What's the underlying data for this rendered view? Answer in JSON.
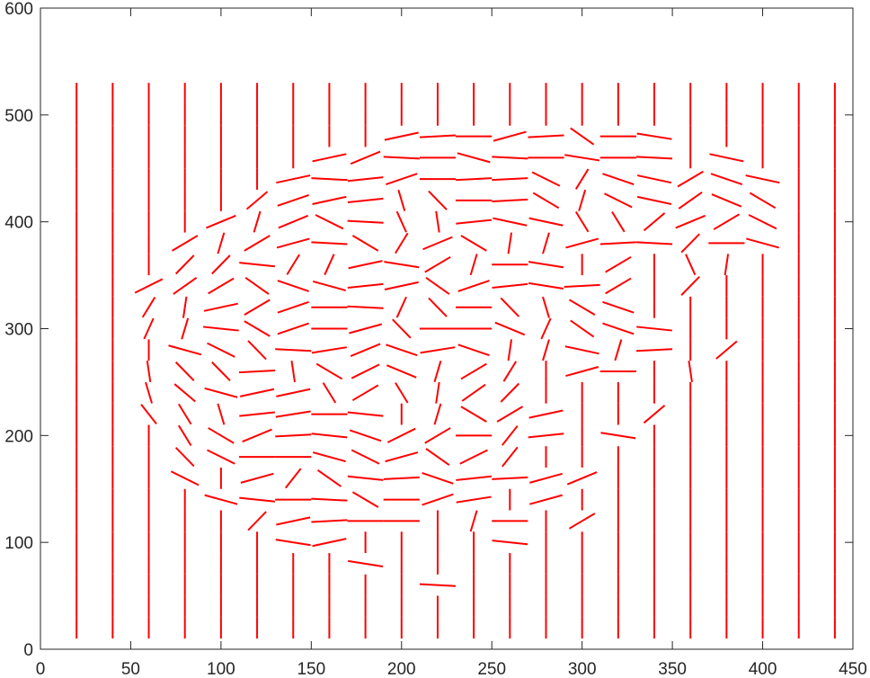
{
  "chart_data": {
    "type": "quiver",
    "title": "",
    "xlabel": "",
    "ylabel": "",
    "xlim": [
      0,
      450
    ],
    "ylim": [
      0,
      600
    ],
    "xticks": [
      0,
      50,
      100,
      150,
      200,
      250,
      300,
      350,
      400,
      450
    ],
    "yticks": [
      0,
      100,
      200,
      300,
      400,
      500,
      600
    ],
    "grid": false,
    "legend": "none",
    "segment_color": "#ff0000",
    "segment_length": 20,
    "grid_x": [
      20,
      40,
      60,
      80,
      100,
      120,
      140,
      160,
      180,
      200,
      220,
      240,
      260,
      280,
      300,
      320,
      340,
      360,
      380,
      400,
      420,
      440
    ],
    "grid_y": [
      20,
      40,
      60,
      80,
      100,
      120,
      140,
      160,
      180,
      200,
      220,
      240,
      260,
      280,
      300,
      320,
      340,
      360,
      380,
      400,
      420,
      440,
      460,
      480,
      500,
      520
    ],
    "vertical_default_angle_deg": 90,
    "oriented_segments": [
      {
        "x": 140,
        "y": 100,
        "angle": -15
      },
      {
        "x": 160,
        "y": 100,
        "angle": 20
      },
      {
        "x": 180,
        "y": 80,
        "angle": -15
      },
      {
        "x": 220,
        "y": 60,
        "angle": -5
      },
      {
        "x": 260,
        "y": 100,
        "angle": -10
      },
      {
        "x": 120,
        "y": 120,
        "angle": 60
      },
      {
        "x": 140,
        "y": 120,
        "angle": 20
      },
      {
        "x": 160,
        "y": 120,
        "angle": 5
      },
      {
        "x": 180,
        "y": 120,
        "angle": 0
      },
      {
        "x": 200,
        "y": 120,
        "angle": 0
      },
      {
        "x": 220,
        "y": 120,
        "angle": 90
      },
      {
        "x": 240,
        "y": 120,
        "angle": 80
      },
      {
        "x": 260,
        "y": 120,
        "angle": 0
      },
      {
        "x": 280,
        "y": 120,
        "angle": 90
      },
      {
        "x": 300,
        "y": 120,
        "angle": 45
      },
      {
        "x": 100,
        "y": 140,
        "angle": -25
      },
      {
        "x": 120,
        "y": 140,
        "angle": -10
      },
      {
        "x": 140,
        "y": 140,
        "angle": 0
      },
      {
        "x": 160,
        "y": 140,
        "angle": -5
      },
      {
        "x": 180,
        "y": 140,
        "angle": -45
      },
      {
        "x": 200,
        "y": 140,
        "angle": 0
      },
      {
        "x": 220,
        "y": 140,
        "angle": 30
      },
      {
        "x": 240,
        "y": 140,
        "angle": 15
      },
      {
        "x": 280,
        "y": 140,
        "angle": 25
      },
      {
        "x": 80,
        "y": 160,
        "angle": -40
      },
      {
        "x": 120,
        "y": 160,
        "angle": 25
      },
      {
        "x": 140,
        "y": 160,
        "angle": 65
      },
      {
        "x": 160,
        "y": 160,
        "angle": -50
      },
      {
        "x": 180,
        "y": 160,
        "angle": -10
      },
      {
        "x": 200,
        "y": 160,
        "angle": 5
      },
      {
        "x": 220,
        "y": 160,
        "angle": -30
      },
      {
        "x": 240,
        "y": 160,
        "angle": 10
      },
      {
        "x": 260,
        "y": 160,
        "angle": 5
      },
      {
        "x": 280,
        "y": 160,
        "angle": 25
      },
      {
        "x": 300,
        "y": 160,
        "angle": 35
      },
      {
        "x": 80,
        "y": 180,
        "angle": -60
      },
      {
        "x": 100,
        "y": 180,
        "angle": -40
      },
      {
        "x": 120,
        "y": 180,
        "angle": 0
      },
      {
        "x": 140,
        "y": 180,
        "angle": 0
      },
      {
        "x": 160,
        "y": 180,
        "angle": -25
      },
      {
        "x": 180,
        "y": 180,
        "angle": -40
      },
      {
        "x": 200,
        "y": 180,
        "angle": 25
      },
      {
        "x": 220,
        "y": 180,
        "angle": -50
      },
      {
        "x": 240,
        "y": 180,
        "angle": 40
      },
      {
        "x": 260,
        "y": 180,
        "angle": 65
      },
      {
        "x": 80,
        "y": 200,
        "angle": -70
      },
      {
        "x": 100,
        "y": 200,
        "angle": -45
      },
      {
        "x": 120,
        "y": 200,
        "angle": 35
      },
      {
        "x": 140,
        "y": 200,
        "angle": 5
      },
      {
        "x": 160,
        "y": 200,
        "angle": -10
      },
      {
        "x": 180,
        "y": 200,
        "angle": -30
      },
      {
        "x": 200,
        "y": 200,
        "angle": 40
      },
      {
        "x": 220,
        "y": 200,
        "angle": 45
      },
      {
        "x": 240,
        "y": 200,
        "angle": 0
      },
      {
        "x": 260,
        "y": 200,
        "angle": 65
      },
      {
        "x": 280,
        "y": 200,
        "angle": 10
      },
      {
        "x": 320,
        "y": 200,
        "angle": -15
      },
      {
        "x": 60,
        "y": 220,
        "angle": -65
      },
      {
        "x": 80,
        "y": 220,
        "angle": -70
      },
      {
        "x": 100,
        "y": 220,
        "angle": -80
      },
      {
        "x": 120,
        "y": 220,
        "angle": 10
      },
      {
        "x": 140,
        "y": 220,
        "angle": 15
      },
      {
        "x": 160,
        "y": 220,
        "angle": 0
      },
      {
        "x": 180,
        "y": 220,
        "angle": -10
      },
      {
        "x": 200,
        "y": 220,
        "angle": -90
      },
      {
        "x": 220,
        "y": 220,
        "angle": 80
      },
      {
        "x": 240,
        "y": 220,
        "angle": -45
      },
      {
        "x": 260,
        "y": 220,
        "angle": 45
      },
      {
        "x": 280,
        "y": 220,
        "angle": 20
      },
      {
        "x": 340,
        "y": 220,
        "angle": 55
      },
      {
        "x": 60,
        "y": 240,
        "angle": -80
      },
      {
        "x": 80,
        "y": 240,
        "angle": -55
      },
      {
        "x": 100,
        "y": 240,
        "angle": -25
      },
      {
        "x": 120,
        "y": 240,
        "angle": 20
      },
      {
        "x": 140,
        "y": 240,
        "angle": 20
      },
      {
        "x": 160,
        "y": 240,
        "angle": -70
      },
      {
        "x": 180,
        "y": 240,
        "angle": 45
      },
      {
        "x": 200,
        "y": 240,
        "angle": -70
      },
      {
        "x": 220,
        "y": 240,
        "angle": 85
      },
      {
        "x": 240,
        "y": 240,
        "angle": 50
      },
      {
        "x": 260,
        "y": 240,
        "angle": 60
      },
      {
        "x": 280,
        "y": 240,
        "angle": 90
      },
      {
        "x": 300,
        "y": 240,
        "angle": -90
      },
      {
        "x": 320,
        "y": 240,
        "angle": 90
      },
      {
        "x": 60,
        "y": 260,
        "angle": -85
      },
      {
        "x": 80,
        "y": 260,
        "angle": -60
      },
      {
        "x": 100,
        "y": 260,
        "angle": -60
      },
      {
        "x": 120,
        "y": 260,
        "angle": 5
      },
      {
        "x": 140,
        "y": 260,
        "angle": -85
      },
      {
        "x": 160,
        "y": 260,
        "angle": -45
      },
      {
        "x": 180,
        "y": 260,
        "angle": 40
      },
      {
        "x": 200,
        "y": 260,
        "angle": -35
      },
      {
        "x": 220,
        "y": 260,
        "angle": 80
      },
      {
        "x": 240,
        "y": 260,
        "angle": 45
      },
      {
        "x": 260,
        "y": 260,
        "angle": 70
      },
      {
        "x": 280,
        "y": 260,
        "angle": 90
      },
      {
        "x": 300,
        "y": 260,
        "angle": 25
      },
      {
        "x": 320,
        "y": 260,
        "angle": 0
      },
      {
        "x": 340,
        "y": 260,
        "angle": 90
      },
      {
        "x": 360,
        "y": 260,
        "angle": -85
      },
      {
        "x": 80,
        "y": 280,
        "angle": -25
      },
      {
        "x": 100,
        "y": 280,
        "angle": -40
      },
      {
        "x": 120,
        "y": 280,
        "angle": -60
      },
      {
        "x": 140,
        "y": 280,
        "angle": -5
      },
      {
        "x": 160,
        "y": 280,
        "angle": 15
      },
      {
        "x": 180,
        "y": 280,
        "angle": 35
      },
      {
        "x": 200,
        "y": 280,
        "angle": -30
      },
      {
        "x": 220,
        "y": 280,
        "angle": 15
      },
      {
        "x": 240,
        "y": 280,
        "angle": -30
      },
      {
        "x": 260,
        "y": 280,
        "angle": 85
      },
      {
        "x": 280,
        "y": 280,
        "angle": 80
      },
      {
        "x": 300,
        "y": 280,
        "angle": -20
      },
      {
        "x": 320,
        "y": 280,
        "angle": 80
      },
      {
        "x": 340,
        "y": 280,
        "angle": 5
      },
      {
        "x": 380,
        "y": 280,
        "angle": 55
      },
      {
        "x": 60,
        "y": 300,
        "angle": 75
      },
      {
        "x": 80,
        "y": 300,
        "angle": 80
      },
      {
        "x": 100,
        "y": 300,
        "angle": -10
      },
      {
        "x": 120,
        "y": 300,
        "angle": -45
      },
      {
        "x": 140,
        "y": 300,
        "angle": 30
      },
      {
        "x": 160,
        "y": 300,
        "angle": 0
      },
      {
        "x": 180,
        "y": 300,
        "angle": 25
      },
      {
        "x": 200,
        "y": 300,
        "angle": -60
      },
      {
        "x": 220,
        "y": 300,
        "angle": 0
      },
      {
        "x": 240,
        "y": 300,
        "angle": 0
      },
      {
        "x": 260,
        "y": 300,
        "angle": -35
      },
      {
        "x": 280,
        "y": 300,
        "angle": 75
      },
      {
        "x": 300,
        "y": 300,
        "angle": -50
      },
      {
        "x": 320,
        "y": 300,
        "angle": -30
      },
      {
        "x": 340,
        "y": 300,
        "angle": -10
      },
      {
        "x": 60,
        "y": 320,
        "angle": 70
      },
      {
        "x": 80,
        "y": 320,
        "angle": 85
      },
      {
        "x": 100,
        "y": 320,
        "angle": 20
      },
      {
        "x": 120,
        "y": 320,
        "angle": 45
      },
      {
        "x": 140,
        "y": 320,
        "angle": 30
      },
      {
        "x": 160,
        "y": 320,
        "angle": 0
      },
      {
        "x": 180,
        "y": 320,
        "angle": -5
      },
      {
        "x": 200,
        "y": 320,
        "angle": 75
      },
      {
        "x": 220,
        "y": 320,
        "angle": -60
      },
      {
        "x": 240,
        "y": 320,
        "angle": 0
      },
      {
        "x": 260,
        "y": 320,
        "angle": -60
      },
      {
        "x": 280,
        "y": 320,
        "angle": -80
      },
      {
        "x": 300,
        "y": 320,
        "angle": -45
      },
      {
        "x": 320,
        "y": 320,
        "angle": -30
      },
      {
        "x": 60,
        "y": 340,
        "angle": 40
      },
      {
        "x": 80,
        "y": 340,
        "angle": 50
      },
      {
        "x": 100,
        "y": 340,
        "angle": 45
      },
      {
        "x": 120,
        "y": 340,
        "angle": -50
      },
      {
        "x": 140,
        "y": 340,
        "angle": -30
      },
      {
        "x": 160,
        "y": 340,
        "angle": -25
      },
      {
        "x": 180,
        "y": 340,
        "angle": 10
      },
      {
        "x": 200,
        "y": 340,
        "angle": 20
      },
      {
        "x": 220,
        "y": 340,
        "angle": -50
      },
      {
        "x": 240,
        "y": 340,
        "angle": 30
      },
      {
        "x": 260,
        "y": 340,
        "angle": 10
      },
      {
        "x": 280,
        "y": 340,
        "angle": -15
      },
      {
        "x": 300,
        "y": 340,
        "angle": 5
      },
      {
        "x": 320,
        "y": 340,
        "angle": 45
      },
      {
        "x": 360,
        "y": 340,
        "angle": 60
      },
      {
        "x": 400,
        "y": 340,
        "angle": 90
      },
      {
        "x": 80,
        "y": 360,
        "angle": 60
      },
      {
        "x": 100,
        "y": 360,
        "angle": 60
      },
      {
        "x": 120,
        "y": 360,
        "angle": -10
      },
      {
        "x": 140,
        "y": 360,
        "angle": 70
      },
      {
        "x": 160,
        "y": 360,
        "angle": 75
      },
      {
        "x": 180,
        "y": 360,
        "angle": 20
      },
      {
        "x": 200,
        "y": 360,
        "angle": -15
      },
      {
        "x": 220,
        "y": 360,
        "angle": 45
      },
      {
        "x": 240,
        "y": 360,
        "angle": 80
      },
      {
        "x": 260,
        "y": 360,
        "angle": 0
      },
      {
        "x": 280,
        "y": 360,
        "angle": -15
      },
      {
        "x": 300,
        "y": 360,
        "angle": 90
      },
      {
        "x": 320,
        "y": 360,
        "angle": 45
      },
      {
        "x": 360,
        "y": 360,
        "angle": -75
      },
      {
        "x": 380,
        "y": 360,
        "angle": 85
      },
      {
        "x": 80,
        "y": 380,
        "angle": 45
      },
      {
        "x": 100,
        "y": 380,
        "angle": 80
      },
      {
        "x": 120,
        "y": 380,
        "angle": 45
      },
      {
        "x": 140,
        "y": 380,
        "angle": 25
      },
      {
        "x": 160,
        "y": 380,
        "angle": -5
      },
      {
        "x": 180,
        "y": 380,
        "angle": -45
      },
      {
        "x": 200,
        "y": 380,
        "angle": 70
      },
      {
        "x": 220,
        "y": 380,
        "angle": 35
      },
      {
        "x": 240,
        "y": 380,
        "angle": -45
      },
      {
        "x": 260,
        "y": 380,
        "angle": 85
      },
      {
        "x": 280,
        "y": 380,
        "angle": 80
      },
      {
        "x": 300,
        "y": 380,
        "angle": 25
      },
      {
        "x": 320,
        "y": 380,
        "angle": 5
      },
      {
        "x": 340,
        "y": 380,
        "angle": -5
      },
      {
        "x": 360,
        "y": 380,
        "angle": 60
      },
      {
        "x": 380,
        "y": 380,
        "angle": 0
      },
      {
        "x": 400,
        "y": 380,
        "angle": -25
      },
      {
        "x": 100,
        "y": 400,
        "angle": 35
      },
      {
        "x": 120,
        "y": 400,
        "angle": 80
      },
      {
        "x": 140,
        "y": 400,
        "angle": 35
      },
      {
        "x": 160,
        "y": 400,
        "angle": -40
      },
      {
        "x": 180,
        "y": 400,
        "angle": -5
      },
      {
        "x": 200,
        "y": 400,
        "angle": -75
      },
      {
        "x": 220,
        "y": 400,
        "angle": -85
      },
      {
        "x": 240,
        "y": 400,
        "angle": 10
      },
      {
        "x": 260,
        "y": 400,
        "angle": -20
      },
      {
        "x": 280,
        "y": 400,
        "angle": -20
      },
      {
        "x": 300,
        "y": 400,
        "angle": -70
      },
      {
        "x": 320,
        "y": 400,
        "angle": -70
      },
      {
        "x": 340,
        "y": 400,
        "angle": 55
      },
      {
        "x": 360,
        "y": 400,
        "angle": 35
      },
      {
        "x": 380,
        "y": 400,
        "angle": 45
      },
      {
        "x": 400,
        "y": 400,
        "angle": -40
      },
      {
        "x": 120,
        "y": 420,
        "angle": 55
      },
      {
        "x": 140,
        "y": 420,
        "angle": 30
      },
      {
        "x": 160,
        "y": 420,
        "angle": 20
      },
      {
        "x": 180,
        "y": 420,
        "angle": 10
      },
      {
        "x": 200,
        "y": 420,
        "angle": -80
      },
      {
        "x": 220,
        "y": 420,
        "angle": -60
      },
      {
        "x": 240,
        "y": 420,
        "angle": 0
      },
      {
        "x": 260,
        "y": 420,
        "angle": 5
      },
      {
        "x": 280,
        "y": 420,
        "angle": -45
      },
      {
        "x": 300,
        "y": 420,
        "angle": 80
      },
      {
        "x": 320,
        "y": 420,
        "angle": -40
      },
      {
        "x": 340,
        "y": 420,
        "angle": -20
      },
      {
        "x": 360,
        "y": 420,
        "angle": 50
      },
      {
        "x": 380,
        "y": 420,
        "angle": -35
      },
      {
        "x": 400,
        "y": 420,
        "angle": -45
      },
      {
        "x": 140,
        "y": 440,
        "angle": 20
      },
      {
        "x": 160,
        "y": 440,
        "angle": -5
      },
      {
        "x": 180,
        "y": 440,
        "angle": 10
      },
      {
        "x": 200,
        "y": 440,
        "angle": 30
      },
      {
        "x": 220,
        "y": 440,
        "angle": 0
      },
      {
        "x": 240,
        "y": 440,
        "angle": 5
      },
      {
        "x": 260,
        "y": 440,
        "angle": 5
      },
      {
        "x": 280,
        "y": 440,
        "angle": -40
      },
      {
        "x": 300,
        "y": 440,
        "angle": 70
      },
      {
        "x": 320,
        "y": 440,
        "angle": -30
      },
      {
        "x": 340,
        "y": 440,
        "angle": -20
      },
      {
        "x": 360,
        "y": 440,
        "angle": 45
      },
      {
        "x": 380,
        "y": 440,
        "angle": -30
      },
      {
        "x": 400,
        "y": 440,
        "angle": -20
      },
      {
        "x": 160,
        "y": 460,
        "angle": 20
      },
      {
        "x": 180,
        "y": 460,
        "angle": 35
      },
      {
        "x": 200,
        "y": 460,
        "angle": -5
      },
      {
        "x": 220,
        "y": 460,
        "angle": 0
      },
      {
        "x": 240,
        "y": 460,
        "angle": -25
      },
      {
        "x": 260,
        "y": 460,
        "angle": -5
      },
      {
        "x": 280,
        "y": 460,
        "angle": 0
      },
      {
        "x": 300,
        "y": 460,
        "angle": -15
      },
      {
        "x": 320,
        "y": 460,
        "angle": 0
      },
      {
        "x": 340,
        "y": 460,
        "angle": -5
      },
      {
        "x": 380,
        "y": 460,
        "angle": -20
      },
      {
        "x": 200,
        "y": 480,
        "angle": 20
      },
      {
        "x": 220,
        "y": 480,
        "angle": 5
      },
      {
        "x": 240,
        "y": 480,
        "angle": 0
      },
      {
        "x": 260,
        "y": 480,
        "angle": 25
      },
      {
        "x": 280,
        "y": 480,
        "angle": 5
      },
      {
        "x": 300,
        "y": 480,
        "angle": -50
      },
      {
        "x": 320,
        "y": 480,
        "angle": 0
      },
      {
        "x": 340,
        "y": 480,
        "angle": -15
      }
    ]
  }
}
